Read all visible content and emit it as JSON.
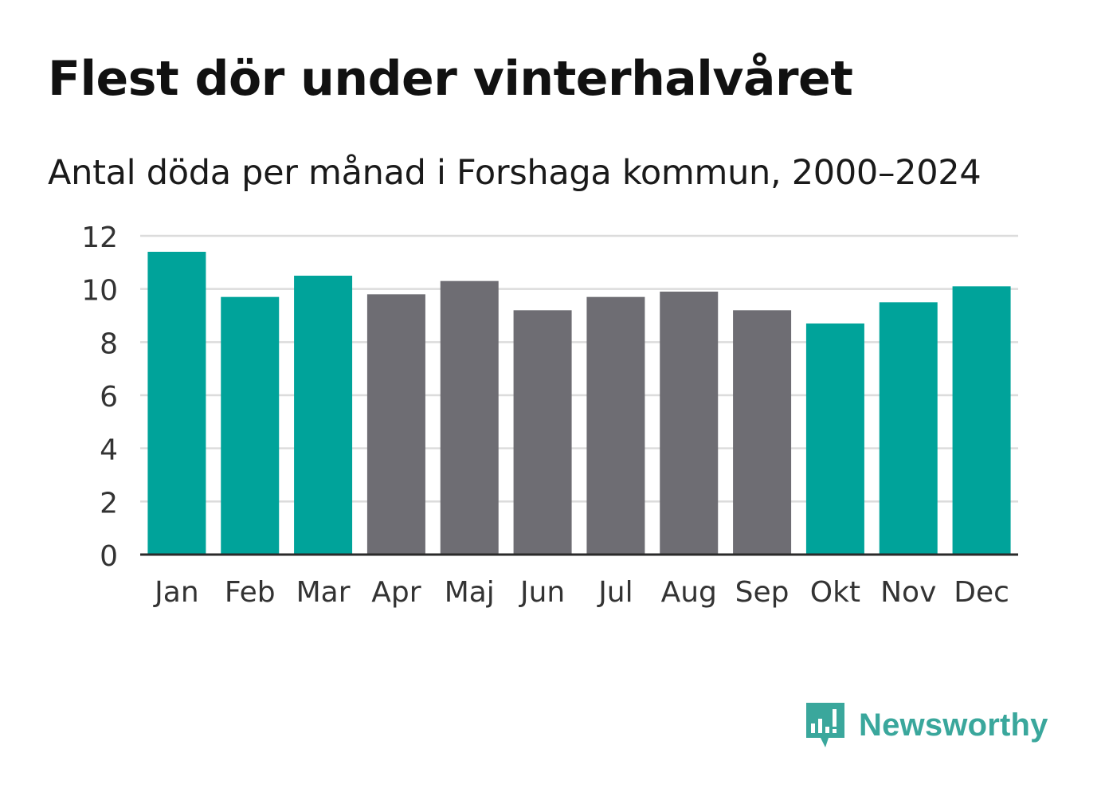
{
  "header": {
    "title": "Flest dör under vinterhalvåret",
    "subtitle": "Antal döda per månad i Forshaga kommun, 2000–2024"
  },
  "chart_data": {
    "type": "bar",
    "categories": [
      "Jan",
      "Feb",
      "Mar",
      "Apr",
      "Maj",
      "Jun",
      "Jul",
      "Aug",
      "Sep",
      "Okt",
      "Nov",
      "Dec"
    ],
    "values": [
      11.4,
      9.7,
      10.5,
      9.8,
      10.3,
      9.2,
      9.7,
      9.9,
      9.2,
      8.7,
      9.5,
      10.1
    ],
    "highlight": [
      true,
      true,
      true,
      false,
      false,
      false,
      false,
      false,
      false,
      true,
      true,
      true
    ],
    "ylim": [
      0,
      12
    ],
    "yticks": [
      0,
      2,
      4,
      6,
      8,
      10,
      12
    ],
    "colors": {
      "highlight": "#00a39a",
      "normal": "#6e6d73",
      "grid": "#dcdcdc",
      "axis": "#2a2a2a",
      "tick": "#333333"
    },
    "grid": true,
    "xlabel": "",
    "ylabel": ""
  },
  "brand": {
    "name": "Newsworthy",
    "icon": "newsworthy-logo-icon",
    "color": "#3aa79c"
  }
}
